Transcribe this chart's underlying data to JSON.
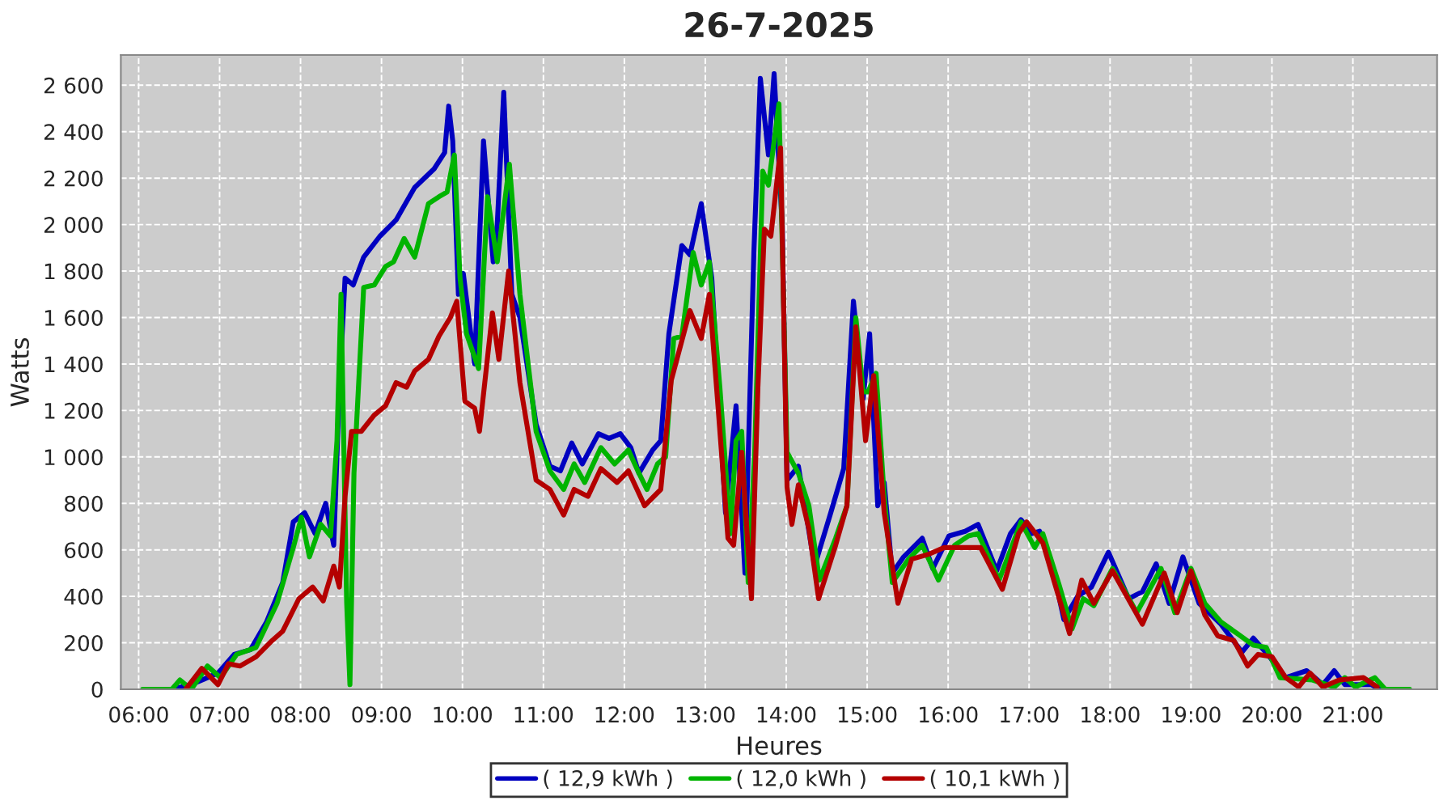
{
  "chart_data": {
    "type": "line",
    "title": "26-7-2025",
    "xlabel": "Heures",
    "ylabel": "Watts",
    "xlim": [
      5.78,
      22.04
    ],
    "ylim": [
      0,
      2730
    ],
    "xticks": [
      {
        "value": 6,
        "label": "06:00"
      },
      {
        "value": 7,
        "label": "07:00"
      },
      {
        "value": 8,
        "label": "08:00"
      },
      {
        "value": 9,
        "label": "09:00"
      },
      {
        "value": 10,
        "label": "10:00"
      },
      {
        "value": 11,
        "label": "11:00"
      },
      {
        "value": 12,
        "label": "12:00"
      },
      {
        "value": 13,
        "label": "13:00"
      },
      {
        "value": 14,
        "label": "14:00"
      },
      {
        "value": 15,
        "label": "15:00"
      },
      {
        "value": 16,
        "label": "16:00"
      },
      {
        "value": 17,
        "label": "17:00"
      },
      {
        "value": 18,
        "label": "18:00"
      },
      {
        "value": 19,
        "label": "19:00"
      },
      {
        "value": 20,
        "label": "20:00"
      },
      {
        "value": 21,
        "label": "21:00"
      }
    ],
    "yticks": [
      0,
      200,
      400,
      600,
      800,
      {
        "value": 1000,
        "label": "1 000"
      },
      {
        "value": 1200,
        "label": "1 200"
      },
      {
        "value": 1400,
        "label": "1 400"
      },
      {
        "value": 1600,
        "label": "1 600"
      },
      {
        "value": 1800,
        "label": "1 800"
      },
      {
        "value": 2000,
        "label": "2 000"
      },
      {
        "value": 2200,
        "label": "2 200"
      },
      {
        "value": 2400,
        "label": "2 400"
      },
      {
        "value": 2600,
        "label": "2 600"
      }
    ],
    "grid": true,
    "legend": "bottom",
    "marker": "none",
    "line_style": "solid",
    "series": [
      {
        "name": "( 12,9 kWh )",
        "color": "#0000c0",
        "x": [
          6.41,
          6.65,
          6.85,
          6.98,
          7.18,
          7.38,
          7.58,
          7.78,
          7.91,
          8.05,
          8.18,
          8.31,
          8.41,
          8.48,
          8.55,
          8.65,
          8.78,
          8.98,
          9.18,
          9.41,
          9.65,
          9.78,
          9.83,
          9.88,
          9.95,
          10.01,
          10.15,
          10.26,
          10.38,
          10.43,
          10.51,
          10.61,
          10.71,
          10.91,
          11.08,
          11.21,
          11.35,
          11.48,
          11.68,
          11.81,
          11.95,
          12.08,
          12.18,
          12.35,
          12.45,
          12.55,
          12.71,
          12.81,
          12.95,
          13.08,
          13.25,
          13.38,
          13.49,
          13.6,
          13.68,
          13.78,
          13.85,
          13.95,
          14.01,
          14.15,
          14.35,
          14.55,
          14.71,
          14.83,
          14.95,
          15.03,
          15.13,
          15.21,
          15.31,
          15.45,
          15.68,
          15.81,
          16.01,
          16.21,
          16.37,
          16.6,
          16.77,
          16.9,
          17.03,
          17.13,
          17.3,
          17.43,
          17.6,
          17.77,
          17.98,
          18.23,
          18.4,
          18.57,
          18.73,
          18.9,
          19.1,
          19.37,
          19.63,
          19.77,
          19.97,
          20.17,
          20.43,
          20.63,
          20.77,
          20.9,
          21.23,
          21.33
        ],
        "values": [
          0,
          20,
          50,
          70,
          150,
          170,
          290,
          460,
          720,
          760,
          670,
          800,
          620,
          1300,
          1770,
          1740,
          1860,
          1950,
          2020,
          2160,
          2240,
          2310,
          2510,
          2360,
          1700,
          1790,
          1400,
          2360,
          1840,
          2000,
          2570,
          1700,
          1600,
          1140,
          960,
          940,
          1060,
          970,
          1100,
          1080,
          1100,
          1040,
          930,
          1030,
          1070,
          1530,
          1910,
          1870,
          2090,
          1770,
          760,
          1220,
          500,
          1880,
          2630,
          2300,
          2650,
          2000,
          900,
          960,
          530,
          760,
          950,
          1670,
          1250,
          1530,
          790,
          890,
          500,
          570,
          650,
          520,
          660,
          680,
          710,
          510,
          670,
          730,
          670,
          680,
          510,
          300,
          400,
          440,
          590,
          390,
          420,
          540,
          370,
          570,
          370,
          280,
          160,
          220,
          140,
          50,
          80,
          20,
          80,
          20,
          20,
          0
        ]
      },
      {
        "name": "( 12,0 kWh )",
        "color": "#00b400",
        "x": [
          6.05,
          6.41,
          6.51,
          6.65,
          6.85,
          7.01,
          7.21,
          7.45,
          7.71,
          7.91,
          8.01,
          8.11,
          8.25,
          8.37,
          8.45,
          8.5,
          8.57,
          8.61,
          8.66,
          8.78,
          8.91,
          9.05,
          9.15,
          9.28,
          9.41,
          9.58,
          9.71,
          9.81,
          9.9,
          9.97,
          10.05,
          10.2,
          10.31,
          10.43,
          10.58,
          10.71,
          10.91,
          11.08,
          11.25,
          11.38,
          11.51,
          11.71,
          11.88,
          12.05,
          12.18,
          12.28,
          12.41,
          12.51,
          12.61,
          12.71,
          12.85,
          12.95,
          13.05,
          13.18,
          13.31,
          13.38,
          13.45,
          13.53,
          13.61,
          13.71,
          13.78,
          13.91,
          14.01,
          14.15,
          14.28,
          14.41,
          14.61,
          14.75,
          14.86,
          14.95,
          15.01,
          15.11,
          15.21,
          15.31,
          15.51,
          15.68,
          15.88,
          16.08,
          16.25,
          16.37,
          16.63,
          16.9,
          17.07,
          17.17,
          17.37,
          17.53,
          17.67,
          17.8,
          18.03,
          18.33,
          18.63,
          18.8,
          19.0,
          19.17,
          19.37,
          19.57,
          19.77,
          19.93,
          20.1,
          20.5,
          20.77,
          20.9,
          21.03,
          21.27,
          21.4,
          21.7
        ],
        "values": [
          0,
          0,
          40,
          0,
          100,
          50,
          150,
          180,
          370,
          610,
          740,
          570,
          710,
          660,
          1070,
          1700,
          370,
          20,
          930,
          1730,
          1740,
          1820,
          1840,
          1940,
          1860,
          2090,
          2120,
          2140,
          2300,
          1770,
          1530,
          1380,
          2120,
          1840,
          2260,
          1700,
          1110,
          940,
          860,
          970,
          890,
          1040,
          970,
          1030,
          930,
          860,
          970,
          1000,
          1510,
          1520,
          1880,
          1740,
          1840,
          1300,
          670,
          1070,
          1110,
          460,
          1020,
          2230,
          2170,
          2520,
          1020,
          930,
          790,
          470,
          650,
          790,
          1600,
          1280,
          1280,
          1360,
          830,
          460,
          560,
          620,
          470,
          620,
          660,
          670,
          470,
          720,
          610,
          670,
          450,
          260,
          390,
          360,
          520,
          330,
          520,
          330,
          520,
          370,
          290,
          240,
          190,
          180,
          50,
          40,
          10,
          50,
          10,
          50,
          0,
          0
        ]
      },
      {
        "name": "( 10,1 kWh )",
        "color": "#b40000",
        "x": [
          6.58,
          6.78,
          6.98,
          7.11,
          7.25,
          7.45,
          7.65,
          7.78,
          7.98,
          8.15,
          8.28,
          8.41,
          8.48,
          8.55,
          8.63,
          8.75,
          8.91,
          9.05,
          9.18,
          9.31,
          9.41,
          9.58,
          9.71,
          9.85,
          9.93,
          10.03,
          10.15,
          10.21,
          10.37,
          10.45,
          10.57,
          10.71,
          10.91,
          11.08,
          11.25,
          11.38,
          11.55,
          11.71,
          11.91,
          12.05,
          12.25,
          12.45,
          12.58,
          12.81,
          12.95,
          13.05,
          13.15,
          13.28,
          13.35,
          13.45,
          13.57,
          13.65,
          13.73,
          13.81,
          13.93,
          14.01,
          14.07,
          14.15,
          14.28,
          14.4,
          14.61,
          14.75,
          14.86,
          14.98,
          15.08,
          15.21,
          15.38,
          15.55,
          15.75,
          15.95,
          16.15,
          16.4,
          16.67,
          16.87,
          16.97,
          17.17,
          17.33,
          17.5,
          17.65,
          17.8,
          18.03,
          18.4,
          18.67,
          18.83,
          19.0,
          19.17,
          19.33,
          19.53,
          19.7,
          19.83,
          20.0,
          20.17,
          20.33,
          20.47,
          20.63,
          20.83,
          21.13,
          21.3
        ],
        "values": [
          0,
          90,
          20,
          110,
          100,
          140,
          210,
          250,
          390,
          440,
          380,
          530,
          440,
          830,
          1110,
          1110,
          1180,
          1220,
          1320,
          1300,
          1370,
          1420,
          1520,
          1600,
          1670,
          1240,
          1210,
          1110,
          1620,
          1420,
          1800,
          1320,
          900,
          860,
          750,
          860,
          830,
          950,
          890,
          940,
          790,
          860,
          1330,
          1630,
          1510,
          1700,
          1250,
          650,
          620,
          1020,
          390,
          1300,
          1980,
          1950,
          2330,
          870,
          710,
          880,
          690,
          390,
          620,
          790,
          1560,
          1070,
          1350,
          760,
          370,
          560,
          580,
          610,
          610,
          610,
          430,
          670,
          720,
          630,
          440,
          240,
          470,
          370,
          510,
          280,
          500,
          330,
          510,
          320,
          230,
          210,
          100,
          150,
          140,
          50,
          10,
          70,
          10,
          40,
          50,
          10
        ]
      }
    ]
  }
}
